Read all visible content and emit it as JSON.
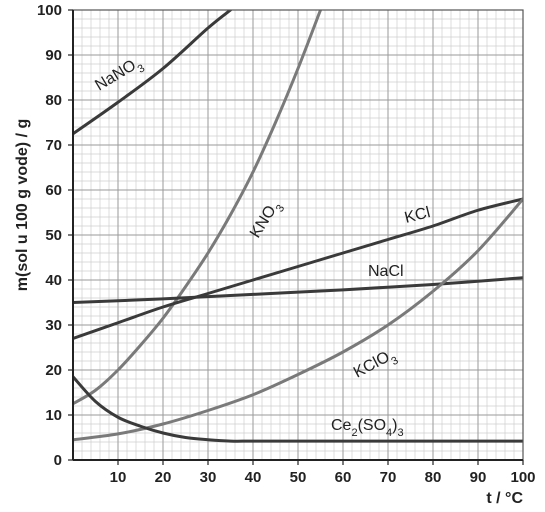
{
  "chart_data": {
    "type": "line",
    "title": "",
    "xlabel": "t / °C",
    "ylabel": "m(sol u 100 g vode) / g",
    "xlim": [
      0,
      100
    ],
    "ylim": [
      0,
      100
    ],
    "x_ticks": [
      10,
      20,
      30,
      40,
      50,
      60,
      70,
      80,
      90,
      100
    ],
    "y_ticks": [
      0,
      10,
      20,
      30,
      40,
      50,
      60,
      70,
      80,
      90,
      100
    ],
    "grid": true,
    "grid_minor_step": 2,
    "legend": "none (labels placed on curves)",
    "series": [
      {
        "name": "NaNO3",
        "label_parts": [
          "NaNO",
          "3",
          ""
        ],
        "color": "#3a3a3a",
        "x": [
          0,
          10,
          20,
          30,
          35
        ],
        "y": [
          72.5,
          79.5,
          87,
          96,
          100
        ]
      },
      {
        "name": "KNO3",
        "label_parts": [
          "KNO",
          "3",
          ""
        ],
        "color": "#7a7a7a",
        "x": [
          0,
          5,
          10,
          15,
          20,
          25,
          30,
          35,
          40,
          45,
          50,
          55
        ],
        "y": [
          12.5,
          15.5,
          20,
          25.5,
          31.5,
          38.5,
          46,
          54.5,
          64,
          75,
          87,
          100
        ]
      },
      {
        "name": "KCl",
        "label_parts": [
          "KCl",
          "",
          ""
        ],
        "color": "#3a3a3a",
        "x": [
          0,
          10,
          20,
          30,
          40,
          50,
          60,
          70,
          80,
          90,
          100
        ],
        "y": [
          27,
          30.5,
          34,
          37,
          40,
          43,
          46,
          49,
          52,
          55.5,
          58
        ]
      },
      {
        "name": "NaCl",
        "label_parts": [
          "NaCl",
          "",
          ""
        ],
        "color": "#3a3a3a",
        "x": [
          0,
          20,
          40,
          60,
          80,
          100
        ],
        "y": [
          35,
          35.8,
          36.8,
          37.8,
          39,
          40.5
        ]
      },
      {
        "name": "KClO3",
        "label_parts": [
          "KClO",
          "3",
          ""
        ],
        "color": "#7a7a7a",
        "x": [
          0,
          10,
          20,
          30,
          40,
          50,
          60,
          70,
          80,
          90,
          100
        ],
        "y": [
          4.5,
          5.8,
          8,
          11,
          14.5,
          19,
          24,
          30,
          37.5,
          46.5,
          58
        ]
      },
      {
        "name": "Ce2(SO4)3",
        "label_parts": [
          "Ce",
          "2",
          "(SO",
          "4",
          ")",
          "3"
        ],
        "color": "#3a3a3a",
        "x": [
          0,
          5,
          10,
          15,
          20,
          25,
          30,
          35,
          40,
          50,
          60,
          70,
          80,
          90,
          100
        ],
        "y": [
          18.5,
          13,
          9.5,
          7.5,
          6,
          5,
          4.5,
          4.2,
          4.2,
          4.2,
          4.2,
          4.2,
          4.2,
          4.2,
          4.2
        ]
      }
    ]
  }
}
